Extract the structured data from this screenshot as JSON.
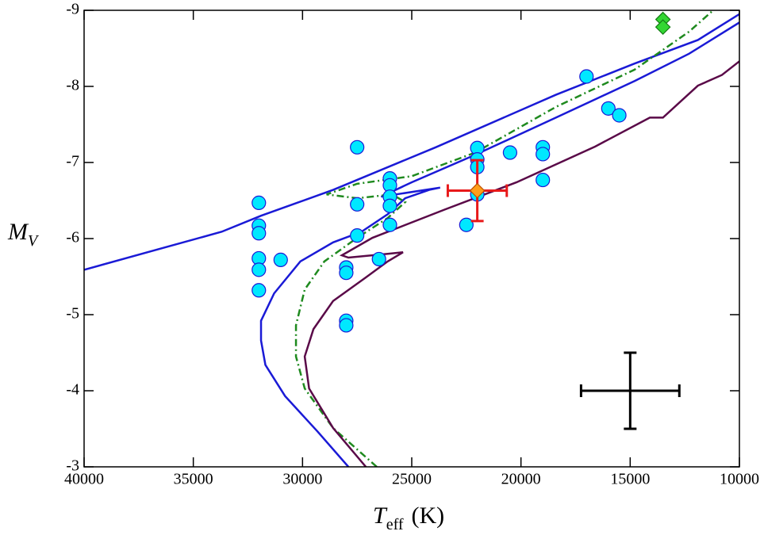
{
  "chart_data": {
    "type": "scatter",
    "xlabel": {
      "main": "T",
      "sub": "eff",
      "unit": "(K)"
    },
    "ylabel": {
      "main": "M",
      "sub": "V"
    },
    "xlim": [
      40000,
      10000
    ],
    "ylim": [
      -9,
      -3
    ],
    "xticks": [
      40000,
      35000,
      30000,
      25000,
      20000,
      15000,
      10000
    ],
    "yticks": [
      -9,
      -8,
      -7,
      -6,
      -5,
      -4,
      -3
    ],
    "series": [
      {
        "style": "line",
        "color": "#1a1ad6",
        "dash": "solid",
        "x": [
          40000,
          36600,
          33700,
          31900,
          28600,
          23900,
          18400,
          14800,
          11900,
          10000
        ],
        "y": [
          -5.59,
          -5.86,
          -6.09,
          -6.3,
          -6.64,
          -7.2,
          -7.89,
          -8.3,
          -8.61,
          -8.95
        ]
      },
      {
        "style": "line",
        "color": "#1a1ad6",
        "dash": "solid",
        "x": [
          27900,
          29300,
          30800,
          31700,
          31900,
          31900,
          31300,
          30100,
          28600,
          27300,
          26100,
          25300,
          24200,
          23700,
          26400,
          25000,
          22100,
          18400,
          14800,
          12300,
          10000
        ],
        "y": [
          -3.0,
          -3.46,
          -3.93,
          -4.34,
          -4.66,
          -4.92,
          -5.28,
          -5.7,
          -5.95,
          -6.09,
          -6.32,
          -6.53,
          -6.64,
          -6.67,
          -6.55,
          -6.74,
          -7.1,
          -7.59,
          -8.07,
          -8.43,
          -8.84
        ]
      },
      {
        "style": "line",
        "color": "#1f8a1f",
        "dash": "dashdot",
        "x": [
          26600,
          28600,
          29900,
          30300,
          30300,
          29900,
          29000,
          27500,
          26100,
          25300,
          25900,
          27500,
          28900,
          27500,
          25000,
          22100,
          18400,
          14800,
          12300,
          11200
        ],
        "y": [
          -3.0,
          -3.51,
          -4.03,
          -4.45,
          -4.86,
          -5.33,
          -5.7,
          -6.01,
          -6.27,
          -6.48,
          -6.58,
          -6.53,
          -6.58,
          -6.72,
          -6.82,
          -7.13,
          -7.73,
          -8.22,
          -8.72,
          -9.0
        ]
      },
      {
        "style": "line",
        "color": "#5a0a48",
        "dash": "solid",
        "x": [
          27100,
          28600,
          29700,
          29900,
          29500,
          28600,
          27100,
          26100,
          25400,
          26100,
          27900,
          28200,
          26800,
          23500,
          20200,
          16600,
          14100,
          13500,
          11900,
          10800,
          10000
        ],
        "y": [
          -3.0,
          -3.51,
          -4.03,
          -4.45,
          -4.81,
          -5.18,
          -5.49,
          -5.7,
          -5.82,
          -5.8,
          -5.75,
          -5.78,
          -6.01,
          -6.38,
          -6.74,
          -7.21,
          -7.59,
          -7.59,
          -8.01,
          -8.15,
          -8.33
        ]
      },
      {
        "style": "markers",
        "marker": "circle",
        "color": "#00e8ff",
        "edge": "#1a1ad6",
        "x": [
          32000,
          32000,
          32000,
          32000,
          32000,
          32000,
          31000,
          27500,
          27500,
          27500,
          28000,
          28000,
          28000,
          28000,
          26500,
          26000,
          26000,
          26000,
          26000,
          26000,
          22000,
          22000,
          22000,
          22000,
          22500,
          20500,
          19000,
          19000,
          19000,
          17000,
          16000,
          15500
        ],
        "y": [
          -6.47,
          -6.17,
          -6.07,
          -5.74,
          -5.59,
          -5.32,
          -5.72,
          -7.2,
          -6.45,
          -6.04,
          -5.62,
          -5.55,
          -4.92,
          -4.86,
          -5.73,
          -6.79,
          -6.7,
          -6.55,
          -6.43,
          -6.18,
          -7.19,
          -7.04,
          -6.94,
          -6.58,
          -6.18,
          -7.13,
          -7.2,
          -7.11,
          -6.77,
          -8.13,
          -7.71,
          -7.62
        ]
      },
      {
        "style": "markers",
        "marker": "diamond",
        "color": "#ff9e1a",
        "edge": "#c05000",
        "errcolor": "#e8191a",
        "x": [
          22000
        ],
        "y": [
          -6.63
        ],
        "xerr": [
          1350
        ],
        "yerr": [
          0.4
        ]
      },
      {
        "style": "markers",
        "marker": "diamond",
        "color": "#33d633",
        "edge": "#137a13",
        "x": [
          13500,
          13500
        ],
        "y": [
          -8.88,
          -8.78
        ]
      },
      {
        "style": "markers",
        "marker": "none",
        "errcolor": "#000000",
        "x": [
          15000
        ],
        "y": [
          -4.0
        ],
        "xerr": [
          2250
        ],
        "yerr": [
          0.5
        ]
      }
    ]
  }
}
